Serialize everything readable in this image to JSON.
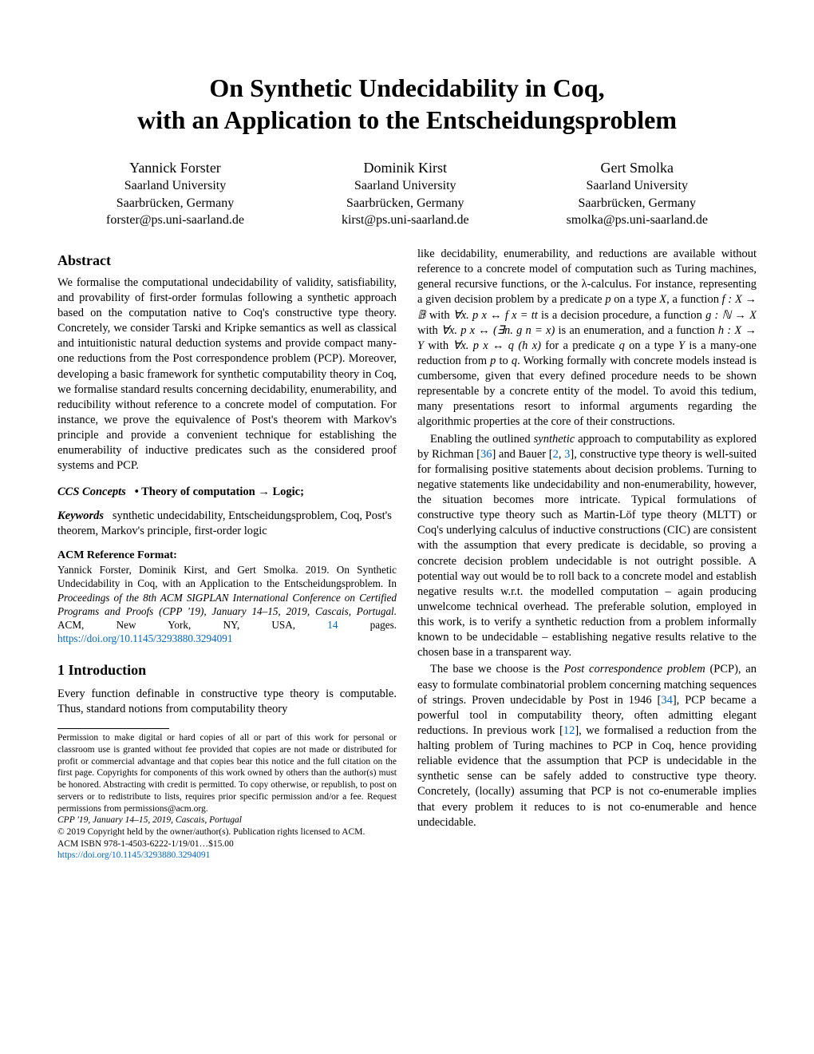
{
  "title_line1": "On Synthetic Undecidability in Coq,",
  "title_line2": "with an Application to the Entscheidungsproblem",
  "authors": [
    {
      "name": "Yannick Forster",
      "affil": "Saarland University",
      "loc": "Saarbrücken, Germany",
      "email": "forster@ps.uni-saarland.de"
    },
    {
      "name": "Dominik Kirst",
      "affil": "Saarland University",
      "loc": "Saarbrücken, Germany",
      "email": "kirst@ps.uni-saarland.de"
    },
    {
      "name": "Gert Smolka",
      "affil": "Saarland University",
      "loc": "Saarbrücken, Germany",
      "email": "smolka@ps.uni-saarland.de"
    }
  ],
  "abstract_heading": "Abstract",
  "abstract_text": "We formalise the computational undecidability of validity, satisfiability, and provability of first-order formulas following a synthetic approach based on the computation native to Coq's constructive type theory. Concretely, we consider Tarski and Kripke semantics as well as classical and intuitionistic natural deduction systems and provide compact many-one reductions from the Post correspondence problem (PCP). Moreover, developing a basic framework for synthetic computability theory in Coq, we formalise standard results concerning decidability, enumerability, and reducibility without reference to a concrete model of computation. For instance, we prove the equivalence of Post's theorem with Markov's principle and provide a convenient technique for establishing the enumerability of inductive predicates such as the considered proof systems and PCP.",
  "ccs_label": "CCS Concepts",
  "ccs_text": "• Theory of computation → Logic;",
  "keywords_label": "Keywords",
  "keywords_text": "synthetic undecidability, Entscheidungsproblem, Coq, Post's theorem, Markov's principle, first-order logic",
  "ref_format_label": "ACM Reference Format:",
  "ref_format_text_1": "Yannick Forster, Dominik Kirst, and Gert Smolka. 2019. On Synthetic Undecidability in Coq, with an Application to the Entscheidungsproblem. In ",
  "ref_format_text_2_italic": "Proceedings of the 8th ACM SIGPLAN International Conference on Certified Programs and Proofs (CPP '19), January 14–15, 2019, Cascais, Portugal.",
  "ref_format_text_3": " ACM, New York, NY, USA, ",
  "ref_format_pages": "14",
  "ref_format_text_4": " pages. ",
  "doi": "https://doi.org/10.1145/3293880.3294091",
  "intro_heading": "1   Introduction",
  "intro_p1": "Every function definable in constructive type theory is computable. Thus, standard notions from computability theory",
  "footnote_perm": "Permission to make digital or hard copies of all or part of this work for personal or classroom use is granted without fee provided that copies are not made or distributed for profit or commercial advantage and that copies bear this notice and the full citation on the first page. Copyrights for components of this work owned by others than the author(s) must be honored. Abstracting with credit is permitted. To copy otherwise, or republish, to post on servers or to redistribute to lists, requires prior specific permission and/or a fee. Request permissions from permissions@acm.org.",
  "footnote_conf": "CPP '19, January 14–15, 2019, Cascais, Portugal",
  "footnote_copy": "© 2019 Copyright held by the owner/author(s). Publication rights licensed to ACM.",
  "footnote_isbn": "ACM ISBN 978-1-4503-6222-1/19/01…$15.00",
  "col2_p1_a": "like decidability, enumerability, and reductions are available without reference to a concrete model of computation such as Turing machines, general recursive functions, or the λ-calculus. For instance, representing a given decision problem by a predicate ",
  "col2_p1_b": " on a type ",
  "col2_p1_c": ", a function ",
  "col2_p1_d": " with ",
  "col2_p1_e": " is a decision procedure, a function ",
  "col2_p1_f": " with ",
  "col2_p1_g": " is an enumeration, and a function ",
  "col2_p1_h": " with ",
  "col2_p1_i": " for a predicate ",
  "col2_p1_j": " on a type ",
  "col2_p1_k": " is a many-one reduction from ",
  "col2_p1_l": " to ",
  "col2_p1_m": ". Working formally with concrete models instead is cumbersome, given that every defined procedure needs to be shown representable by a concrete entity of the model. To avoid this tedium, many presentations resort to informal arguments regarding the algorithmic properties at the core of their constructions.",
  "col2_p2_a": "Enabling the outlined ",
  "col2_p2_synthetic": "synthetic",
  "col2_p2_b": " approach to computability as explored by Richman [",
  "col2_p2_ref1": "36",
  "col2_p2_c": "] and Bauer [",
  "col2_p2_ref2": "2",
  "col2_p2_d": ", ",
  "col2_p2_ref3": "3",
  "col2_p2_e": "], constructive type theory is well-suited for formalising positive statements about decision problems. Turning to negative statements like undecidability and non-enumerability, however, the situation becomes more intricate. Typical formulations of constructive type theory such as Martin-Löf type theory (MLTT) or Coq's underlying calculus of inductive constructions (CIC) are consistent with the assumption that every predicate is decidable, so proving a concrete decision problem undecidable is not outright possible. A potential way out would be to roll back to a concrete model and establish negative results w.r.t. the modelled computation – again producing unwelcome technical overhead. The preferable solution, employed in this work, is to verify a synthetic reduction from a problem informally known to be undecidable – establishing negative results relative to the chosen base in a transparent way.",
  "col2_p3_a": "The base we choose is the ",
  "col2_p3_pcp": "Post correspondence problem",
  "col2_p3_b": " (PCP), an easy to formulate combinatorial problem concerning matching sequences of strings. Proven undecidable by Post in 1946 [",
  "col2_p3_ref1": "34",
  "col2_p3_c": "], PCP became a powerful tool in computability theory, often admitting elegant reductions. In previous work [",
  "col2_p3_ref2": "12",
  "col2_p3_d": "], we formalised a reduction from the halting problem of Turing machines to PCP in Coq, hence providing reliable evidence that the assumption that PCP is undecidable in the synthetic sense can be safely added to constructive type theory. Concretely, (locally) assuming that PCP is not co-enumerable implies that every problem it reduces to is not co-enumerable and hence undecidable.",
  "colors": {
    "text": "#000000",
    "link": "#0066cc",
    "background": "#ffffff"
  }
}
